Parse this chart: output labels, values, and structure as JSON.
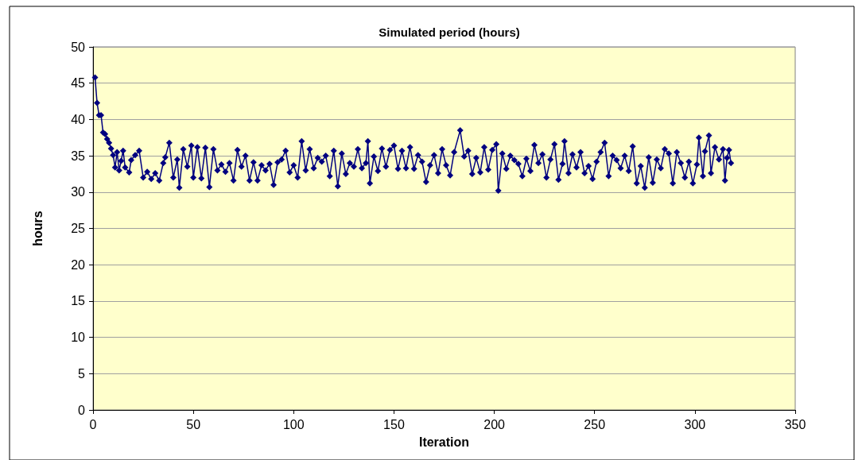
{
  "chart_data": {
    "type": "line",
    "title": "Simulated period (hours)",
    "xlabel": "Iteration",
    "ylabel": "hours",
    "xlim": [
      0,
      350
    ],
    "xticks": [
      0,
      50,
      100,
      150,
      200,
      250,
      300,
      350
    ],
    "ylim": [
      0,
      50
    ],
    "yticks": [
      0,
      5,
      10,
      15,
      20,
      25,
      30,
      35,
      40,
      45,
      50
    ],
    "grid": "y",
    "marker": "diamond",
    "line_style": "solid",
    "series": [
      {
        "color": "#000080",
        "x": [
          1,
          2,
          3,
          4,
          5,
          6,
          7,
          8,
          9,
          10,
          11,
          12,
          13,
          14,
          15,
          16,
          18,
          19,
          21,
          23,
          25,
          27,
          29,
          31,
          33,
          35,
          36,
          38,
          40,
          42,
          43,
          45,
          47,
          49,
          50,
          52,
          54,
          56,
          58,
          60,
          62,
          64,
          66,
          68,
          70,
          72,
          74,
          76,
          78,
          80,
          82,
          84,
          86,
          88,
          90,
          92,
          94,
          96,
          98,
          100,
          102,
          104,
          106,
          108,
          110,
          112,
          114,
          116,
          118,
          120,
          122,
          124,
          126,
          128,
          130,
          132,
          134,
          136,
          137,
          138,
          140,
          142,
          144,
          146,
          148,
          150,
          152,
          154,
          156,
          158,
          160,
          162,
          164,
          166,
          168,
          170,
          172,
          174,
          176,
          178,
          180,
          183,
          185,
          187,
          189,
          191,
          193,
          195,
          197,
          199,
          201,
          202,
          204,
          206,
          208,
          210,
          212,
          214,
          216,
          218,
          220,
          222,
          224,
          226,
          228,
          230,
          232,
          234,
          235,
          237,
          239,
          241,
          243,
          245,
          247,
          249,
          251,
          253,
          255,
          257,
          259,
          261,
          263,
          265,
          267,
          269,
          271,
          273,
          275,
          277,
          279,
          281,
          283,
          285,
          287,
          289,
          291,
          293,
          295,
          297,
          299,
          301,
          302,
          304,
          305,
          307,
          308,
          310,
          312,
          314,
          315,
          316,
          317,
          318
        ],
        "values": [
          45.8,
          42.3,
          40.6,
          40.6,
          38.2,
          38.0,
          37.3,
          36.8,
          36.0,
          35.1,
          33.4,
          35.5,
          33.0,
          34.3,
          35.7,
          33.4,
          32.7,
          34.4,
          35.1,
          35.7,
          32.0,
          32.8,
          31.8,
          32.6,
          31.6,
          34.0,
          34.8,
          36.8,
          32.0,
          34.5,
          30.6,
          35.9,
          33.5,
          36.4,
          32.0,
          36.2,
          31.9,
          36.1,
          30.7,
          35.9,
          33.0,
          33.8,
          32.8,
          34.0,
          31.6,
          35.8,
          33.5,
          35.0,
          31.6,
          34.1,
          31.6,
          33.7,
          33.0,
          33.9,
          31.0,
          34.1,
          34.5,
          35.7,
          32.7,
          33.7,
          32.0,
          37.0,
          33.0,
          35.9,
          33.3,
          34.7,
          34.2,
          35.0,
          32.2,
          35.7,
          30.8,
          35.3,
          32.5,
          34.0,
          33.5,
          35.9,
          33.3,
          34.0,
          37.0,
          31.2,
          34.9,
          32.9,
          36.0,
          33.5,
          35.8,
          36.4,
          33.2,
          35.7,
          33.3,
          36.2,
          33.2,
          35.1,
          34.2,
          31.4,
          33.7,
          35.1,
          32.6,
          35.9,
          33.7,
          32.3,
          35.5,
          38.5,
          34.9,
          35.7,
          32.5,
          34.7,
          32.7,
          36.2,
          33.1,
          35.8,
          36.6,
          30.2,
          35.3,
          33.2,
          35.0,
          34.4,
          33.9,
          32.2,
          34.6,
          32.9,
          36.5,
          34.0,
          35.2,
          32.0,
          34.5,
          36.6,
          31.7,
          33.9,
          37.0,
          32.6,
          35.2,
          33.4,
          35.5,
          32.6,
          33.6,
          31.8,
          34.2,
          35.5,
          36.8,
          32.2,
          35.0,
          34.4,
          33.3,
          35.0,
          32.9,
          36.3,
          31.2,
          33.6,
          30.6,
          34.8,
          31.3,
          34.5,
          33.3,
          35.9,
          35.3,
          31.2,
          35.5,
          34.0,
          32.0,
          34.2,
          31.2,
          33.8,
          37.5,
          32.2,
          35.6,
          37.8,
          32.6,
          36.2,
          34.5,
          35.9,
          31.6,
          34.7,
          35.8,
          34.0
        ]
      }
    ]
  }
}
